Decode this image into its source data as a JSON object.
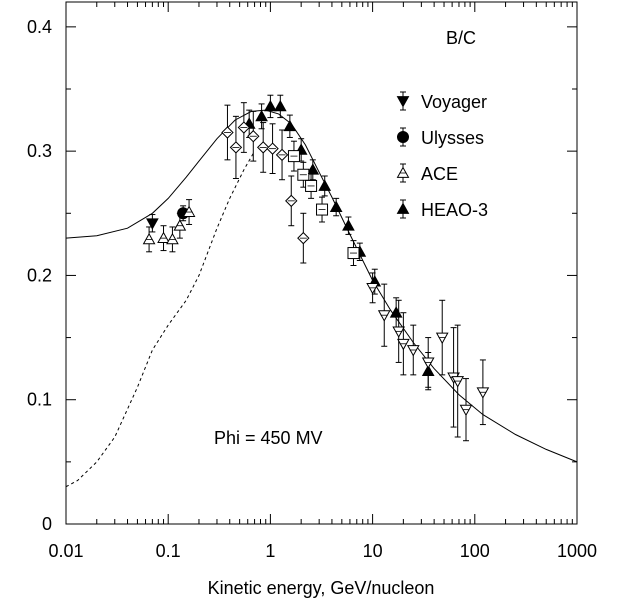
{
  "chart_data": {
    "type": "scatter",
    "title": "",
    "xlabel": "Kinetic energy, GeV/nucleon",
    "ylabel": "",
    "xscale": "log",
    "xlim": [
      0.01,
      1000
    ],
    "ylim": [
      0,
      0.42
    ],
    "x_ticks": [
      {
        "value": 0.01,
        "label": "0.01"
      },
      {
        "value": 0.1,
        "label": "0.1"
      },
      {
        "value": 1,
        "label": "1"
      },
      {
        "value": 10,
        "label": "10"
      },
      {
        "value": 100,
        "label": "100"
      },
      {
        "value": 1000,
        "label": "1000"
      }
    ],
    "y_ticks": [
      {
        "value": 0,
        "label": "0"
      },
      {
        "value": 0.1,
        "label": "0.1"
      },
      {
        "value": 0.2,
        "label": "0.2"
      },
      {
        "value": 0.3,
        "label": "0.3"
      },
      {
        "value": 0.4,
        "label": "0.4"
      }
    ],
    "grid": false,
    "legend_position": "top-right",
    "annotations": {
      "ratio_label": "B/C",
      "phi_label": "Phi = 450 MV"
    },
    "series": [
      {
        "name": "Voyager",
        "marker": "triangle-down-filled",
        "points": [
          {
            "x": 0.07,
            "y": 0.242,
            "err": 0.007
          }
        ]
      },
      {
        "name": "Ulysses",
        "marker": "circle-filled",
        "points": [
          {
            "x": 0.14,
            "y": 0.25,
            "err": 0.006
          }
        ]
      },
      {
        "name": "ACE",
        "marker": "triangle-up-open",
        "points": [
          {
            "x": 0.065,
            "y": 0.229,
            "err": 0.01
          },
          {
            "x": 0.09,
            "y": 0.23,
            "err": 0.01
          },
          {
            "x": 0.11,
            "y": 0.229,
            "err": 0.01
          },
          {
            "x": 0.13,
            "y": 0.24,
            "err": 0.01
          },
          {
            "x": 0.16,
            "y": 0.251,
            "err": 0.01
          }
        ]
      },
      {
        "name": "HEAO-3",
        "marker": "triangle-up-filled",
        "points": [
          {
            "x": 0.62,
            "y": 0.322,
            "err": 0.011
          },
          {
            "x": 0.82,
            "y": 0.328,
            "err": 0.01
          },
          {
            "x": 1.0,
            "y": 0.336,
            "err": 0.009
          },
          {
            "x": 1.25,
            "y": 0.336,
            "err": 0.009
          },
          {
            "x": 1.55,
            "y": 0.32,
            "err": 0.009
          },
          {
            "x": 2.0,
            "y": 0.301,
            "err": 0.009
          },
          {
            "x": 2.6,
            "y": 0.285,
            "err": 0.008
          },
          {
            "x": 3.4,
            "y": 0.272,
            "err": 0.008
          },
          {
            "x": 4.4,
            "y": 0.255,
            "err": 0.007
          },
          {
            "x": 5.8,
            "y": 0.24,
            "err": 0.007
          },
          {
            "x": 7.5,
            "y": 0.219,
            "err": 0.007
          },
          {
            "x": 10.5,
            "y": 0.195,
            "err": 0.01
          },
          {
            "x": 17,
            "y": 0.17,
            "err": 0.012
          },
          {
            "x": 35,
            "y": 0.123,
            "err": 0.015
          }
        ]
      },
      {
        "name": "",
        "marker": "diamond-open",
        "points": [
          {
            "x": 0.38,
            "y": 0.315,
            "err": 0.022
          },
          {
            "x": 0.46,
            "y": 0.303,
            "err": 0.025
          },
          {
            "x": 0.55,
            "y": 0.319,
            "err": 0.02
          },
          {
            "x": 0.68,
            "y": 0.312,
            "err": 0.02
          },
          {
            "x": 0.85,
            "y": 0.303,
            "err": 0.02
          },
          {
            "x": 1.05,
            "y": 0.302,
            "err": 0.02
          },
          {
            "x": 1.3,
            "y": 0.297,
            "err": 0.02
          },
          {
            "x": 1.6,
            "y": 0.26,
            "err": 0.02
          },
          {
            "x": 2.1,
            "y": 0.23,
            "err": 0.02
          }
        ]
      },
      {
        "name": "",
        "marker": "square-open",
        "points": [
          {
            "x": 1.7,
            "y": 0.296,
            "err": 0.012
          },
          {
            "x": 2.1,
            "y": 0.281,
            "err": 0.01
          },
          {
            "x": 2.5,
            "y": 0.272,
            "err": 0.01
          },
          {
            "x": 3.2,
            "y": 0.253,
            "err": 0.01
          },
          {
            "x": 6.5,
            "y": 0.218,
            "err": 0.01
          }
        ]
      },
      {
        "name": "",
        "marker": "triangle-down-open",
        "points": [
          {
            "x": 10,
            "y": 0.19,
            "err": 0.012
          },
          {
            "x": 13,
            "y": 0.168,
            "err": 0.025
          },
          {
            "x": 18,
            "y": 0.155,
            "err": 0.025
          },
          {
            "x": 20,
            "y": 0.145,
            "err": 0.025
          },
          {
            "x": 25,
            "y": 0.14,
            "err": 0.02
          },
          {
            "x": 35,
            "y": 0.13,
            "err": 0.02
          },
          {
            "x": 48,
            "y": 0.15,
            "err": 0.03
          },
          {
            "x": 62,
            "y": 0.118,
            "err": 0.04
          },
          {
            "x": 68,
            "y": 0.115,
            "err": 0.045
          },
          {
            "x": 82,
            "y": 0.092,
            "err": 0.025
          },
          {
            "x": 120,
            "y": 0.106,
            "err": 0.026
          }
        ]
      },
      {
        "name": "",
        "line": "solid",
        "points": [
          {
            "x": 0.01,
            "y": 0.23
          },
          {
            "x": 0.02,
            "y": 0.232
          },
          {
            "x": 0.04,
            "y": 0.238
          },
          {
            "x": 0.07,
            "y": 0.25
          },
          {
            "x": 0.1,
            "y": 0.262
          },
          {
            "x": 0.15,
            "y": 0.279
          },
          {
            "x": 0.2,
            "y": 0.292
          },
          {
            "x": 0.3,
            "y": 0.31
          },
          {
            "x": 0.45,
            "y": 0.325
          },
          {
            "x": 0.65,
            "y": 0.332
          },
          {
            "x": 0.9,
            "y": 0.333
          },
          {
            "x": 1.2,
            "y": 0.33
          },
          {
            "x": 1.6,
            "y": 0.322
          },
          {
            "x": 2.2,
            "y": 0.305
          },
          {
            "x": 3,
            "y": 0.283
          },
          {
            "x": 4,
            "y": 0.263
          },
          {
            "x": 6,
            "y": 0.233
          },
          {
            "x": 10,
            "y": 0.196
          },
          {
            "x": 15,
            "y": 0.172
          },
          {
            "x": 25,
            "y": 0.146
          },
          {
            "x": 40,
            "y": 0.125
          },
          {
            "x": 70,
            "y": 0.104
          },
          {
            "x": 120,
            "y": 0.088
          },
          {
            "x": 250,
            "y": 0.072
          },
          {
            "x": 500,
            "y": 0.06
          },
          {
            "x": 1000,
            "y": 0.05
          }
        ]
      },
      {
        "name": "",
        "line": "dashed",
        "points": [
          {
            "x": 0.01,
            "y": 0.03
          },
          {
            "x": 0.013,
            "y": 0.035
          },
          {
            "x": 0.02,
            "y": 0.05
          },
          {
            "x": 0.03,
            "y": 0.07
          },
          {
            "x": 0.05,
            "y": 0.11
          },
          {
            "x": 0.07,
            "y": 0.14
          },
          {
            "x": 0.1,
            "y": 0.16
          },
          {
            "x": 0.15,
            "y": 0.18
          },
          {
            "x": 0.2,
            "y": 0.2
          },
          {
            "x": 0.3,
            "y": 0.238
          },
          {
            "x": 0.4,
            "y": 0.262
          },
          {
            "x": 0.55,
            "y": 0.285
          },
          {
            "x": 0.7,
            "y": 0.3
          }
        ]
      }
    ]
  }
}
